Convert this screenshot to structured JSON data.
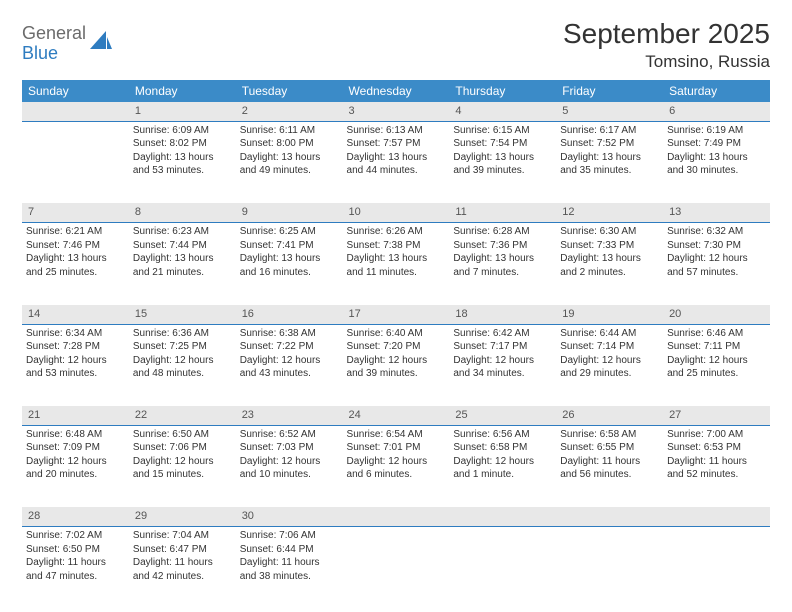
{
  "logo": {
    "word1": "General",
    "word2": "Blue"
  },
  "title": "September 2025",
  "location": "Tomsino, Russia",
  "theme": {
    "header_bg": "#3b8bc8",
    "header_text": "#ffffff",
    "daynum_bg": "#e8e8e8",
    "daynum_text": "#555555",
    "rule_color": "#2e7cc0",
    "body_text": "#333333",
    "page_bg": "#ffffff"
  },
  "days_of_week": [
    "Sunday",
    "Monday",
    "Tuesday",
    "Wednesday",
    "Thursday",
    "Friday",
    "Saturday"
  ],
  "weeks": [
    {
      "nums": [
        "",
        "1",
        "2",
        "3",
        "4",
        "5",
        "6"
      ],
      "cells": [
        {
          "lines": []
        },
        {
          "lines": [
            "Sunrise: 6:09 AM",
            "Sunset: 8:02 PM",
            "Daylight: 13 hours and 53 minutes."
          ]
        },
        {
          "lines": [
            "Sunrise: 6:11 AM",
            "Sunset: 8:00 PM",
            "Daylight: 13 hours and 49 minutes."
          ]
        },
        {
          "lines": [
            "Sunrise: 6:13 AM",
            "Sunset: 7:57 PM",
            "Daylight: 13 hours and 44 minutes."
          ]
        },
        {
          "lines": [
            "Sunrise: 6:15 AM",
            "Sunset: 7:54 PM",
            "Daylight: 13 hours and 39 minutes."
          ]
        },
        {
          "lines": [
            "Sunrise: 6:17 AM",
            "Sunset: 7:52 PM",
            "Daylight: 13 hours and 35 minutes."
          ]
        },
        {
          "lines": [
            "Sunrise: 6:19 AM",
            "Sunset: 7:49 PM",
            "Daylight: 13 hours and 30 minutes."
          ]
        }
      ]
    },
    {
      "nums": [
        "7",
        "8",
        "9",
        "10",
        "11",
        "12",
        "13"
      ],
      "cells": [
        {
          "lines": [
            "Sunrise: 6:21 AM",
            "Sunset: 7:46 PM",
            "Daylight: 13 hours and 25 minutes."
          ]
        },
        {
          "lines": [
            "Sunrise: 6:23 AM",
            "Sunset: 7:44 PM",
            "Daylight: 13 hours and 21 minutes."
          ]
        },
        {
          "lines": [
            "Sunrise: 6:25 AM",
            "Sunset: 7:41 PM",
            "Daylight: 13 hours and 16 minutes."
          ]
        },
        {
          "lines": [
            "Sunrise: 6:26 AM",
            "Sunset: 7:38 PM",
            "Daylight: 13 hours and 11 minutes."
          ]
        },
        {
          "lines": [
            "Sunrise: 6:28 AM",
            "Sunset: 7:36 PM",
            "Daylight: 13 hours and 7 minutes."
          ]
        },
        {
          "lines": [
            "Sunrise: 6:30 AM",
            "Sunset: 7:33 PM",
            "Daylight: 13 hours and 2 minutes."
          ]
        },
        {
          "lines": [
            "Sunrise: 6:32 AM",
            "Sunset: 7:30 PM",
            "Daylight: 12 hours and 57 minutes."
          ]
        }
      ]
    },
    {
      "nums": [
        "14",
        "15",
        "16",
        "17",
        "18",
        "19",
        "20"
      ],
      "cells": [
        {
          "lines": [
            "Sunrise: 6:34 AM",
            "Sunset: 7:28 PM",
            "Daylight: 12 hours and 53 minutes."
          ]
        },
        {
          "lines": [
            "Sunrise: 6:36 AM",
            "Sunset: 7:25 PM",
            "Daylight: 12 hours and 48 minutes."
          ]
        },
        {
          "lines": [
            "Sunrise: 6:38 AM",
            "Sunset: 7:22 PM",
            "Daylight: 12 hours and 43 minutes."
          ]
        },
        {
          "lines": [
            "Sunrise: 6:40 AM",
            "Sunset: 7:20 PM",
            "Daylight: 12 hours and 39 minutes."
          ]
        },
        {
          "lines": [
            "Sunrise: 6:42 AM",
            "Sunset: 7:17 PM",
            "Daylight: 12 hours and 34 minutes."
          ]
        },
        {
          "lines": [
            "Sunrise: 6:44 AM",
            "Sunset: 7:14 PM",
            "Daylight: 12 hours and 29 minutes."
          ]
        },
        {
          "lines": [
            "Sunrise: 6:46 AM",
            "Sunset: 7:11 PM",
            "Daylight: 12 hours and 25 minutes."
          ]
        }
      ]
    },
    {
      "nums": [
        "21",
        "22",
        "23",
        "24",
        "25",
        "26",
        "27"
      ],
      "cells": [
        {
          "lines": [
            "Sunrise: 6:48 AM",
            "Sunset: 7:09 PM",
            "Daylight: 12 hours and 20 minutes."
          ]
        },
        {
          "lines": [
            "Sunrise: 6:50 AM",
            "Sunset: 7:06 PM",
            "Daylight: 12 hours and 15 minutes."
          ]
        },
        {
          "lines": [
            "Sunrise: 6:52 AM",
            "Sunset: 7:03 PM",
            "Daylight: 12 hours and 10 minutes."
          ]
        },
        {
          "lines": [
            "Sunrise: 6:54 AM",
            "Sunset: 7:01 PM",
            "Daylight: 12 hours and 6 minutes."
          ]
        },
        {
          "lines": [
            "Sunrise: 6:56 AM",
            "Sunset: 6:58 PM",
            "Daylight: 12 hours and 1 minute."
          ]
        },
        {
          "lines": [
            "Sunrise: 6:58 AM",
            "Sunset: 6:55 PM",
            "Daylight: 11 hours and 56 minutes."
          ]
        },
        {
          "lines": [
            "Sunrise: 7:00 AM",
            "Sunset: 6:53 PM",
            "Daylight: 11 hours and 52 minutes."
          ]
        }
      ]
    },
    {
      "nums": [
        "28",
        "29",
        "30",
        "",
        "",
        "",
        ""
      ],
      "cells": [
        {
          "lines": [
            "Sunrise: 7:02 AM",
            "Sunset: 6:50 PM",
            "Daylight: 11 hours and 47 minutes."
          ]
        },
        {
          "lines": [
            "Sunrise: 7:04 AM",
            "Sunset: 6:47 PM",
            "Daylight: 11 hours and 42 minutes."
          ]
        },
        {
          "lines": [
            "Sunrise: 7:06 AM",
            "Sunset: 6:44 PM",
            "Daylight: 11 hours and 38 minutes."
          ]
        },
        {
          "lines": []
        },
        {
          "lines": []
        },
        {
          "lines": []
        },
        {
          "lines": []
        }
      ]
    }
  ]
}
